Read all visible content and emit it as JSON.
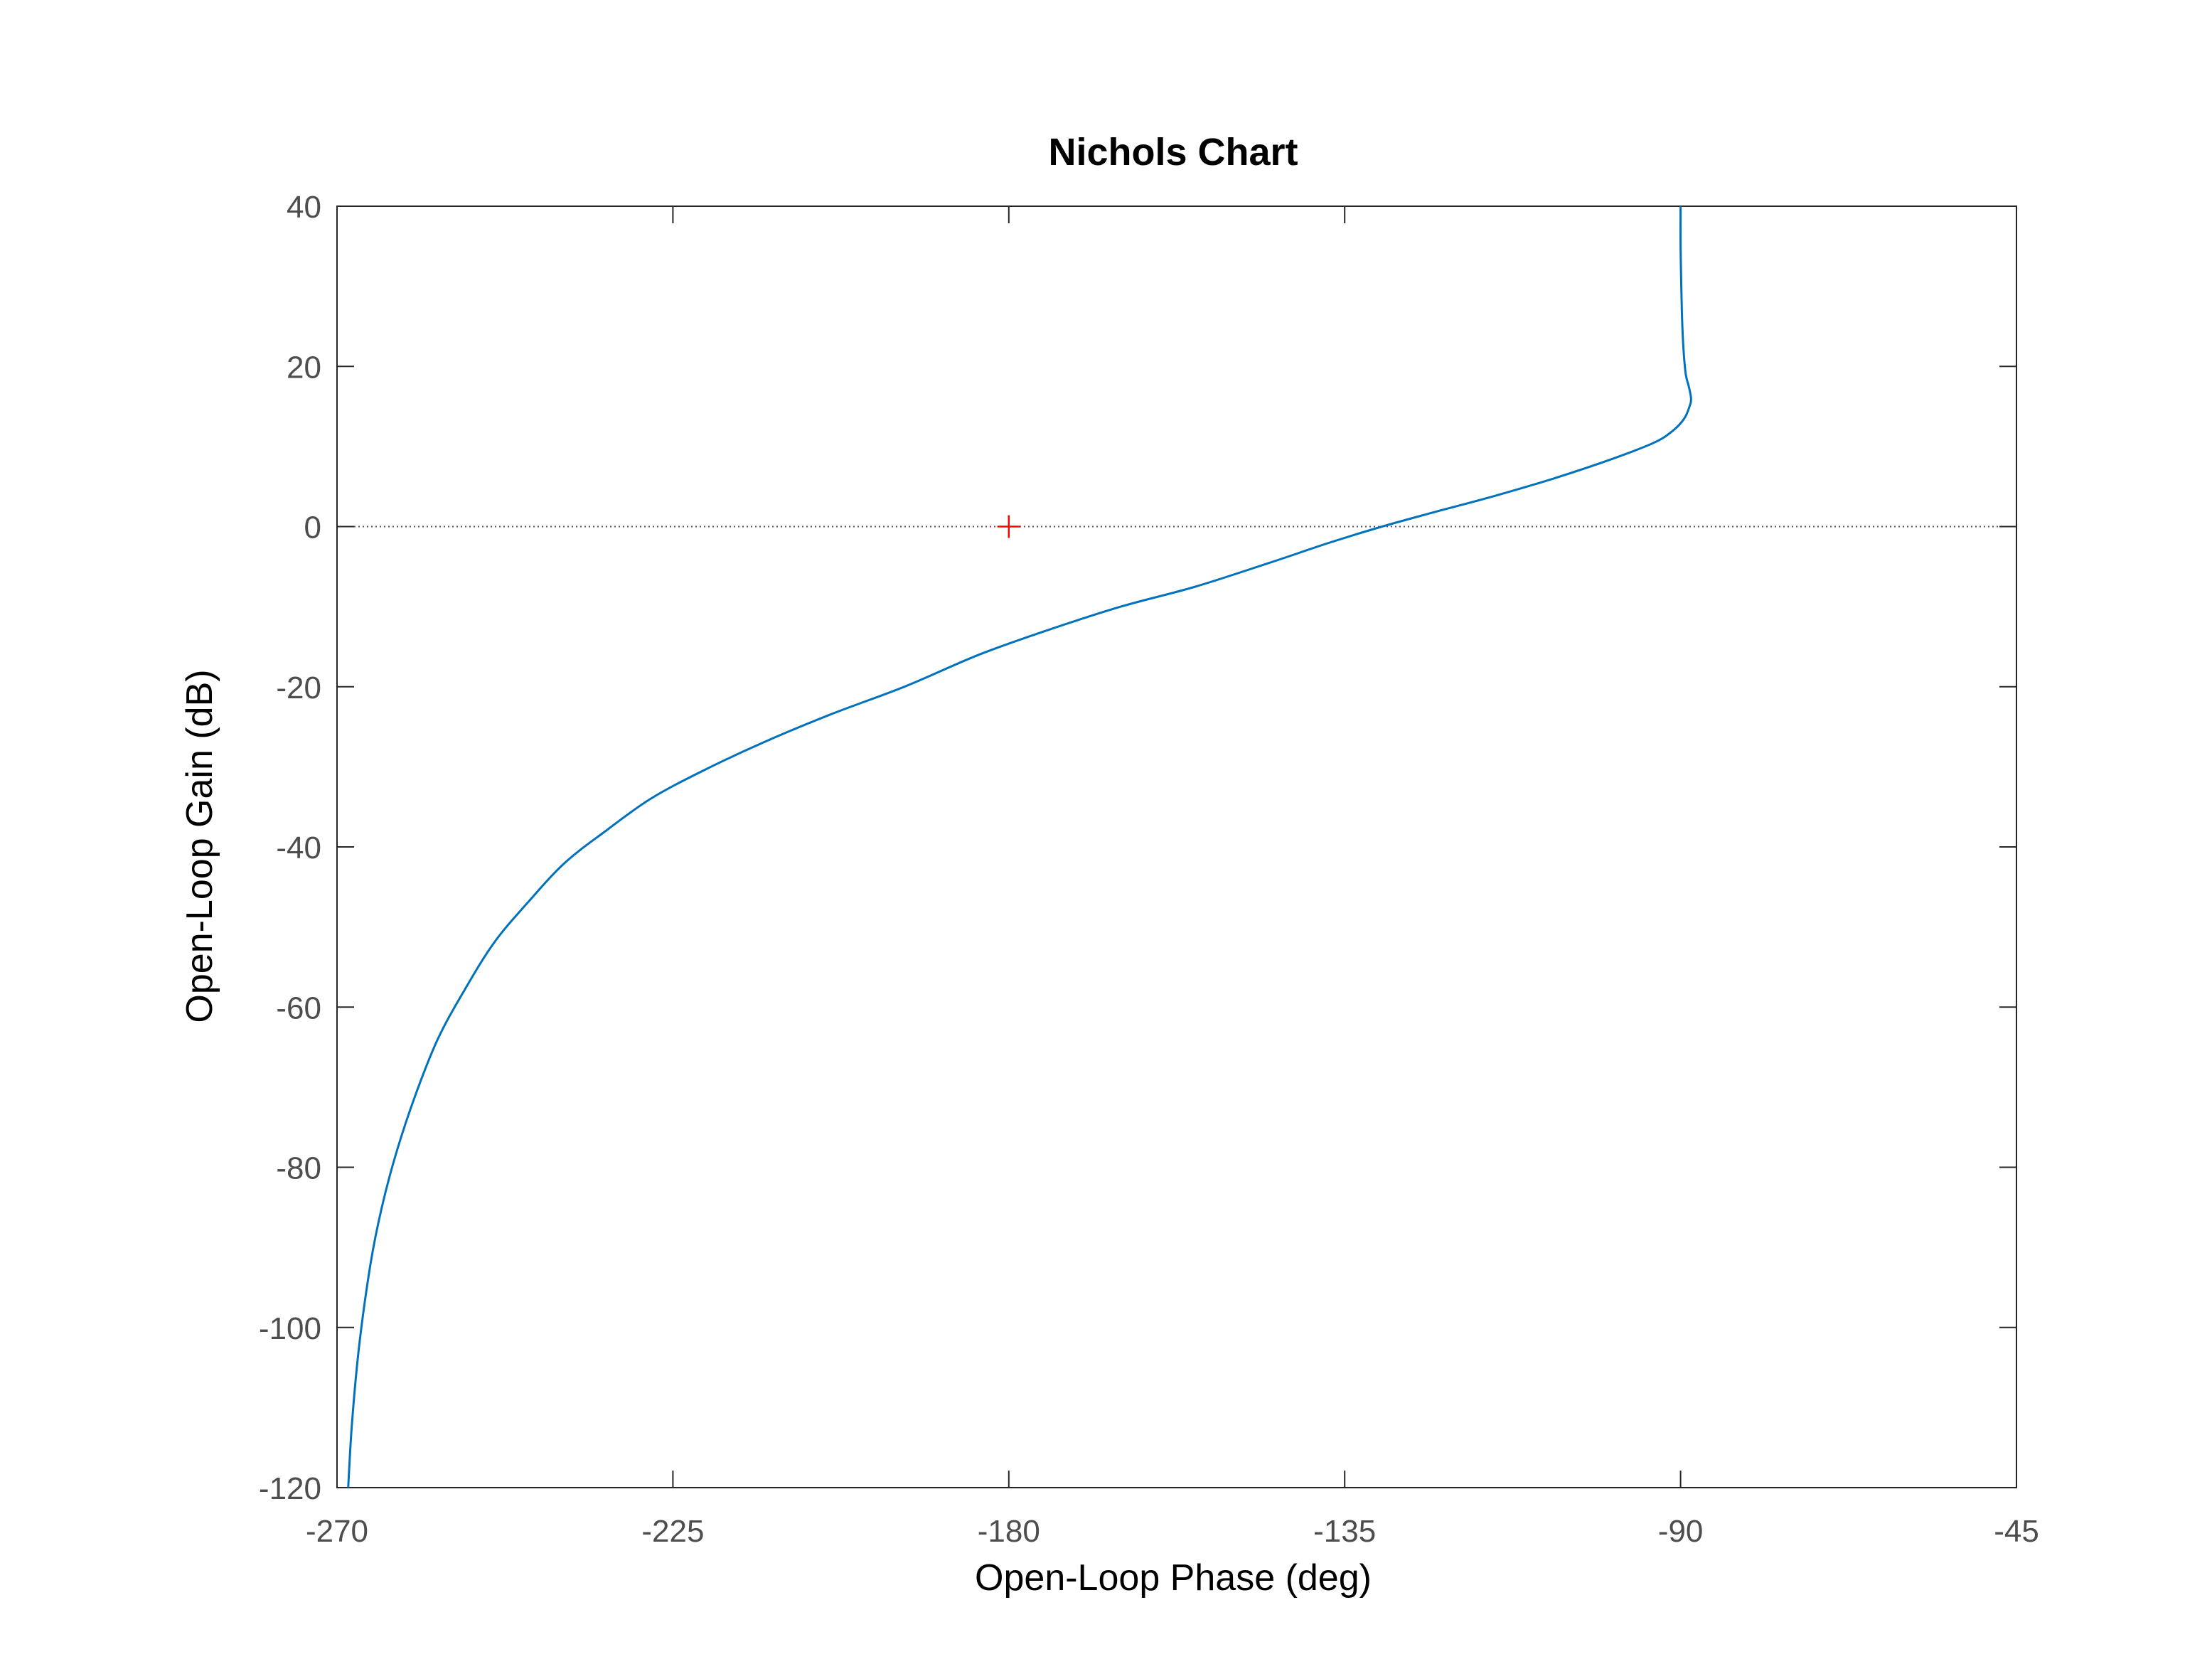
{
  "chart_data": {
    "type": "line",
    "title": "Nichols Chart",
    "xlabel": "Open-Loop Phase (deg)",
    "ylabel": "Open-Loop Gain (dB)",
    "xlim": [
      -270,
      -45
    ],
    "ylim": [
      -120,
      40
    ],
    "xticks": [
      -270,
      -225,
      -180,
      -135,
      -90,
      -45
    ],
    "yticks": [
      40,
      20,
      0,
      -20,
      -40,
      -60,
      -80,
      -100,
      -120
    ],
    "xtick_labels": [
      "-270",
      "-225",
      "-180",
      "-135",
      "-90",
      "-45"
    ],
    "ytick_labels": [
      "40",
      "20",
      "0",
      "-20",
      "-40",
      "-60",
      "-80",
      "-100",
      "-120"
    ],
    "grid": false,
    "reference_line": {
      "y": 0,
      "style": "dotted",
      "color": "#555555"
    },
    "critical_point": {
      "x": -180,
      "y": 0,
      "marker": "+",
      "color": "#ff0000"
    },
    "series": [
      {
        "color": "#0072bd",
        "points": [
          [
            -268.5,
            -120
          ],
          [
            -268.0,
            -112
          ],
          [
            -267.0,
            -102
          ],
          [
            -265.5,
            -92
          ],
          [
            -264.0,
            -85
          ],
          [
            -262.0,
            -78
          ],
          [
            -259.5,
            -71
          ],
          [
            -256.5,
            -64
          ],
          [
            -253.0,
            -58
          ],
          [
            -249.0,
            -52
          ],
          [
            -244.5,
            -47
          ],
          [
            -239.5,
            -42
          ],
          [
            -234.0,
            -38
          ],
          [
            -228.0,
            -34
          ],
          [
            -221.0,
            -30.5
          ],
          [
            -213.0,
            -27
          ],
          [
            -204.0,
            -23.5
          ],
          [
            -194.0,
            -20
          ],
          [
            -184.0,
            -16
          ],
          [
            -175.0,
            -13
          ],
          [
            -165.0,
            -10
          ],
          [
            -155.0,
            -7.5
          ],
          [
            -145.0,
            -4.5
          ],
          [
            -137.0,
            -2
          ],
          [
            -130.0,
            0
          ],
          [
            -123.0,
            1.8
          ],
          [
            -115.0,
            3.8
          ],
          [
            -107.0,
            6
          ],
          [
            -99.0,
            8.5
          ],
          [
            -93.5,
            10.5
          ],
          [
            -91.0,
            12
          ],
          [
            -89.5,
            13.5
          ],
          [
            -88.8,
            15
          ],
          [
            -88.6,
            16
          ],
          [
            -88.9,
            17.5
          ],
          [
            -89.3,
            19
          ],
          [
            -89.6,
            22
          ],
          [
            -89.8,
            26
          ],
          [
            -89.9,
            30
          ],
          [
            -90.0,
            35
          ],
          [
            -90.0,
            40
          ]
        ]
      }
    ]
  }
}
